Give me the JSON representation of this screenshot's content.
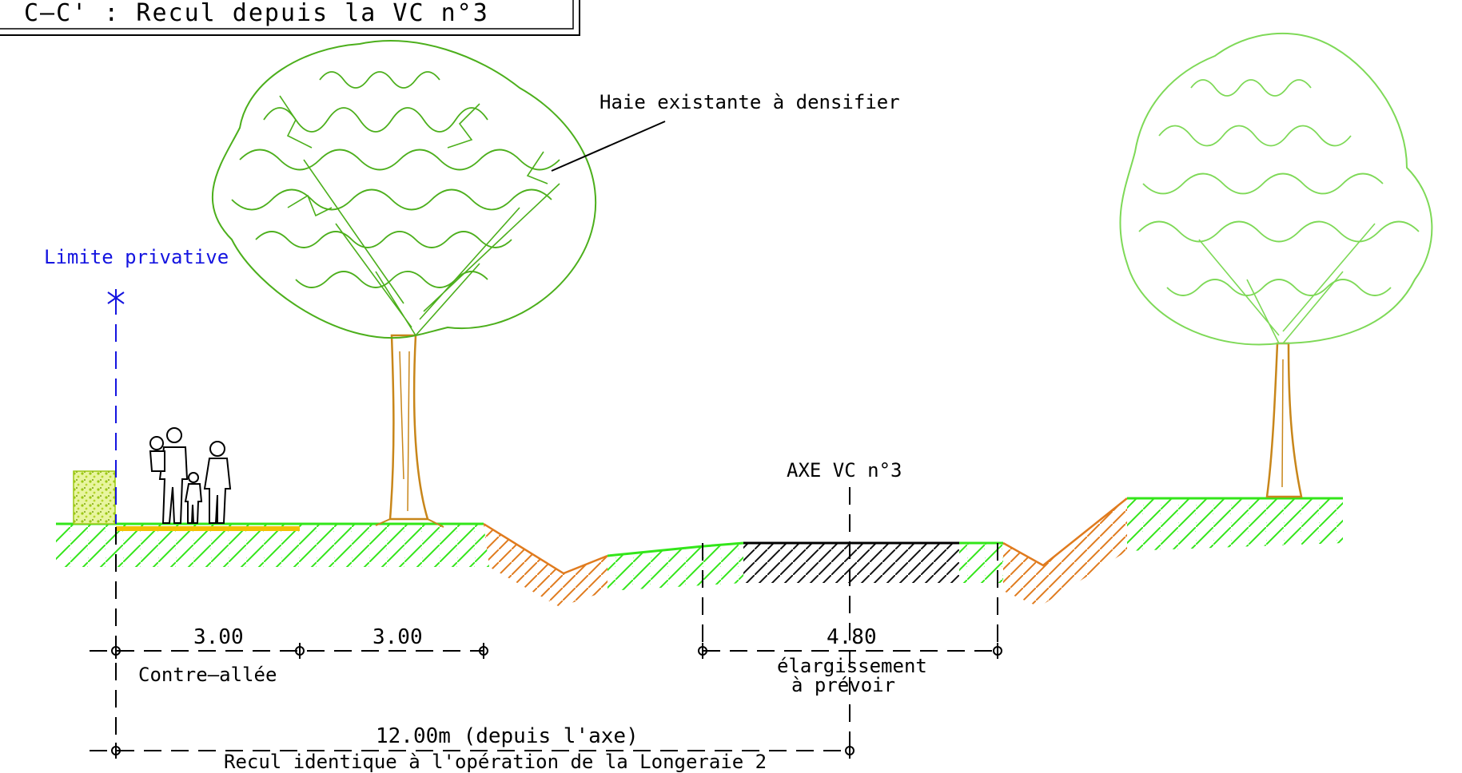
{
  "title": "C–C' : Recul depuis la VC n°3",
  "labels": {
    "limite": "Limite privative",
    "haie": "Haie existante à densifier",
    "axe": "AXE VC n°3",
    "contre_allee": "Contre–allée",
    "elargissement_1": "élargissement",
    "elargissement_2": "à prévoir",
    "total": "12.00m (depuis l'axe)",
    "recul": "Recul identique à l'opération de la Longeraie 2"
  },
  "dimensions": {
    "seg1": "3.00",
    "seg2": "3.00",
    "road": "4.80"
  },
  "colors": {
    "grass": "#33e61a",
    "soil": "#e07b1e",
    "tree_light": "#7ed957",
    "tree_dark": "#4caf1c",
    "trunk": "#c8861a",
    "limit": "#1414e0",
    "path": "#f2c200",
    "hedge": "#b5d62a"
  }
}
